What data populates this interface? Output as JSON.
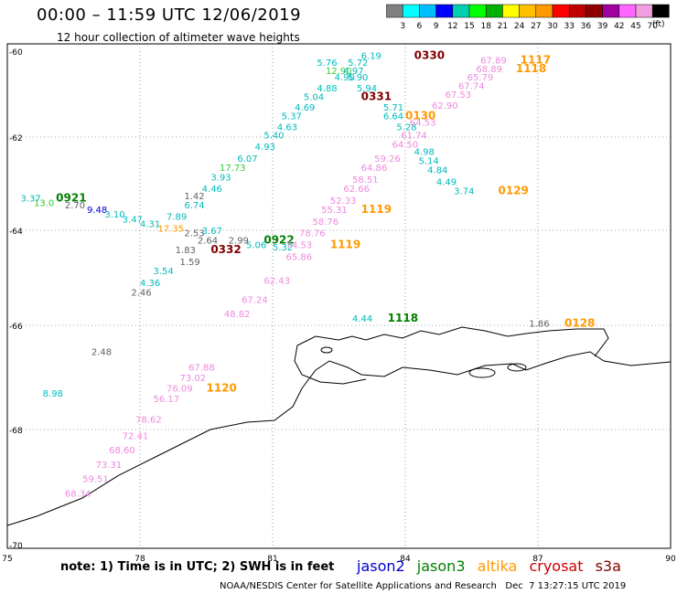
{
  "title": "00:00 – 11:59 UTC 12/06/2019",
  "subtitle": "12 hour collection of altimeter wave heights",
  "colorbar": {
    "unit": "(ft)",
    "ticks": [
      "3",
      "6",
      "9",
      "12",
      "15",
      "18",
      "21",
      "24",
      "27",
      "30",
      "33",
      "36",
      "39",
      "42",
      "45",
      "70"
    ],
    "colors": [
      "#808080",
      "#00ffff",
      "#00bfff",
      "#0000ff",
      "#00d0b0",
      "#00ff00",
      "#00b000",
      "#ffff00",
      "#ffc000",
      "#ff9900",
      "#ff0000",
      "#c00000",
      "#900000",
      "#a000a0",
      "#ff66ff",
      "#f0a0e0",
      "#000000"
    ]
  },
  "axes": {
    "x_labels": [
      "75",
      "78",
      "81",
      "84",
      "87",
      "90"
    ],
    "y_labels": [
      "-60",
      "-62",
      "-64",
      "-66",
      "-68",
      "-70"
    ]
  },
  "satellites": {
    "jason2": "#0000cc",
    "jason3": "#008000",
    "altika": "#ff9900",
    "cryosat": "#cc0000",
    "s3a": "#800000"
  },
  "map_data": {
    "labels": [
      {
        "text": "6.19",
        "color": "#00bbbb",
        "x": 83.0,
        "y": -60.1
      },
      {
        "text": "0330",
        "color": "#800000",
        "x": 84.2,
        "y": -60.1,
        "big": true
      },
      {
        "text": "5.76",
        "color": "#00bbbb",
        "x": 82.0,
        "y": -60.25
      },
      {
        "text": "5.72",
        "color": "#00bbbb",
        "x": 82.7,
        "y": -60.25
      },
      {
        "text": "12.90",
        "color": "#33cc33",
        "x": 82.2,
        "y": -60.45
      },
      {
        "text": "4.97",
        "color": "#00bbbb",
        "x": 82.6,
        "y": -60.45
      },
      {
        "text": "4.90",
        "color": "#00bbbb",
        "x": 82.4,
        "y": -60.6
      },
      {
        "text": "5.90",
        "color": "#00bbbb",
        "x": 82.7,
        "y": -60.6
      },
      {
        "text": "4.88",
        "color": "#00bbbb",
        "x": 82.0,
        "y": -60.85
      },
      {
        "text": "5.94",
        "color": "#00bbbb",
        "x": 82.9,
        "y": -60.85
      },
      {
        "text": "5.04",
        "color": "#00bbbb",
        "x": 81.7,
        "y": -61.05
      },
      {
        "text": "0331",
        "color": "#800000",
        "x": 83.0,
        "y": -61.05,
        "big": true
      },
      {
        "text": "4.69",
        "color": "#00bbbb",
        "x": 81.5,
        "y": -61.3
      },
      {
        "text": "5.71",
        "color": "#00bbbb",
        "x": 83.5,
        "y": -61.3
      },
      {
        "text": "5.37",
        "color": "#00bbbb",
        "x": 81.2,
        "y": -61.5
      },
      {
        "text": "6.64",
        "color": "#00bbbb",
        "x": 83.5,
        "y": -61.5
      },
      {
        "text": "4.63",
        "color": "#00bbbb",
        "x": 81.1,
        "y": -61.75
      },
      {
        "text": "5.28",
        "color": "#00bbbb",
        "x": 83.8,
        "y": -61.75
      },
      {
        "text": "5.40",
        "color": "#00bbbb",
        "x": 80.8,
        "y": -61.95
      },
      {
        "text": "4.93",
        "color": "#00bbbb",
        "x": 80.6,
        "y": -62.2
      },
      {
        "text": "4.98",
        "color": "#00bbbb",
        "x": 84.2,
        "y": -62.3
      },
      {
        "text": "6.07",
        "color": "#00bbbb",
        "x": 80.2,
        "y": -62.45
      },
      {
        "text": "5.14",
        "color": "#00bbbb",
        "x": 84.3,
        "y": -62.5
      },
      {
        "text": "17.73",
        "color": "#33cc33",
        "x": 79.8,
        "y": -62.65
      },
      {
        "text": "4.84",
        "color": "#00bbbb",
        "x": 84.5,
        "y": -62.7
      },
      {
        "text": "3.93",
        "color": "#00bbbb",
        "x": 79.6,
        "y": -62.85
      },
      {
        "text": "4.49",
        "color": "#00bbbb",
        "x": 84.7,
        "y": -62.95
      },
      {
        "text": "4.46",
        "color": "#00bbbb",
        "x": 79.4,
        "y": -63.1
      },
      {
        "text": "3.74",
        "color": "#00bbbb",
        "x": 85.1,
        "y": -63.15
      },
      {
        "text": "0129",
        "color": "#ff9900",
        "x": 86.1,
        "y": -63.15,
        "big": true
      },
      {
        "text": "1.42",
        "color": "#606060",
        "x": 79.0,
        "y": -63.25
      },
      {
        "text": "3.37",
        "color": "#00bbbb",
        "x": 75.3,
        "y": -63.3
      },
      {
        "text": "0921",
        "color": "#008000",
        "x": 76.1,
        "y": -63.3,
        "big": true
      },
      {
        "text": "13.0",
        "color": "#33cc33",
        "x": 75.6,
        "y": -63.4
      },
      {
        "text": "2.70",
        "color": "#606060",
        "x": 76.3,
        "y": -63.45
      },
      {
        "text": "6.74",
        "color": "#00bbbb",
        "x": 79.0,
        "y": -63.45
      },
      {
        "text": "9.48",
        "color": "#0000cc",
        "x": 76.8,
        "y": -63.55
      },
      {
        "text": "3.10",
        "color": "#00bbbb",
        "x": 77.2,
        "y": -63.65
      },
      {
        "text": "7.89",
        "color": "#00bbbb",
        "x": 78.6,
        "y": -63.7
      },
      {
        "text": "3.47",
        "color": "#00bbbb",
        "x": 77.6,
        "y": -63.75
      },
      {
        "text": "4.31",
        "color": "#00bbbb",
        "x": 78.0,
        "y": -63.85
      },
      {
        "text": "17.35",
        "color": "#ff9900",
        "x": 78.4,
        "y": -63.95
      },
      {
        "text": "2.53",
        "color": "#606060",
        "x": 79.0,
        "y": -64.05
      },
      {
        "text": "3.67",
        "color": "#00bbbb",
        "x": 79.4,
        "y": -64.0
      },
      {
        "text": "2.64",
        "color": "#606060",
        "x": 79.3,
        "y": -64.2
      },
      {
        "text": "2.99",
        "color": "#606060",
        "x": 80.0,
        "y": -64.2
      },
      {
        "text": "0922",
        "color": "#008000",
        "x": 80.8,
        "y": -64.2,
        "big": true
      },
      {
        "text": "5.06",
        "color": "#00bbbb",
        "x": 80.4,
        "y": -64.3
      },
      {
        "text": "5.32",
        "color": "#00bbbb",
        "x": 81.0,
        "y": -64.35
      },
      {
        "text": "1.83",
        "color": "#606060",
        "x": 78.8,
        "y": -64.4
      },
      {
        "text": "0332",
        "color": "#800000",
        "x": 79.6,
        "y": -64.4,
        "big": true
      },
      {
        "text": "1.59",
        "color": "#606060",
        "x": 78.9,
        "y": -64.65
      },
      {
        "text": "3.54",
        "color": "#00bbbb",
        "x": 78.3,
        "y": -64.85
      },
      {
        "text": "4.36",
        "color": "#00bbbb",
        "x": 78.0,
        "y": -65.1
      },
      {
        "text": "2.46",
        "color": "#606060",
        "x": 77.8,
        "y": -65.3
      },
      {
        "text": "4.44",
        "color": "#00bbbb",
        "x": 82.8,
        "y": -65.85
      },
      {
        "text": "1118",
        "color": "#008000",
        "x": 83.6,
        "y": -65.85,
        "big": true
      },
      {
        "text": "1.86",
        "color": "#606060",
        "x": 86.8,
        "y": -65.95
      },
      {
        "text": "0128",
        "color": "#ff9900",
        "x": 87.6,
        "y": -65.95,
        "big": true
      },
      {
        "text": "2.48",
        "color": "#606060",
        "x": 76.9,
        "y": -66.5
      },
      {
        "text": "8.98",
        "color": "#00bbbb",
        "x": 75.8,
        "y": -67.3
      },
      {
        "text": "67.89",
        "color": "#ee88dd",
        "x": 85.7,
        "y": -60.2
      },
      {
        "text": "1117",
        "color": "#ff9900",
        "x": 86.6,
        "y": -60.2,
        "big": true
      },
      {
        "text": "68.89",
        "color": "#ee88dd",
        "x": 85.6,
        "y": -60.4
      },
      {
        "text": "1118",
        "color": "#ff9900",
        "x": 86.5,
        "y": -60.4,
        "big": true
      },
      {
        "text": "65.79",
        "color": "#ee88dd",
        "x": 85.4,
        "y": -60.6
      },
      {
        "text": "67.74",
        "color": "#ee88dd",
        "x": 85.2,
        "y": -60.8
      },
      {
        "text": "67.53",
        "color": "#ee88dd",
        "x": 84.9,
        "y": -61.0
      },
      {
        "text": "62.90",
        "color": "#ee88dd",
        "x": 84.6,
        "y": -61.25
      },
      {
        "text": "0130",
        "color": "#ff9900",
        "x": 84.0,
        "y": -61.5,
        "big": true
      },
      {
        "text": "64.53",
        "color": "#ee88dd",
        "x": 84.1,
        "y": -61.65
      },
      {
        "text": "61.74",
        "color": "#ee88dd",
        "x": 83.9,
        "y": -61.95
      },
      {
        "text": "64.50",
        "color": "#ee88dd",
        "x": 83.7,
        "y": -62.15
      },
      {
        "text": "59.26",
        "color": "#ee88dd",
        "x": 83.3,
        "y": -62.45
      },
      {
        "text": "64.86",
        "color": "#ee88dd",
        "x": 83.0,
        "y": -62.65
      },
      {
        "text": "58.51",
        "color": "#ee88dd",
        "x": 82.8,
        "y": -62.9
      },
      {
        "text": "62.66",
        "color": "#ee88dd",
        "x": 82.6,
        "y": -63.1
      },
      {
        "text": "52.33",
        "color": "#ee88dd",
        "x": 82.3,
        "y": -63.35
      },
      {
        "text": "55.31",
        "color": "#ee88dd",
        "x": 82.1,
        "y": -63.55
      },
      {
        "text": "1119",
        "color": "#ff9900",
        "x": 83.0,
        "y": -63.55,
        "big": true
      },
      {
        "text": "58.76",
        "color": "#ee88dd",
        "x": 81.9,
        "y": -63.8
      },
      {
        "text": "78.76",
        "color": "#ee88dd",
        "x": 81.6,
        "y": -64.05
      },
      {
        "text": "74.53",
        "color": "#ee88dd",
        "x": 81.3,
        "y": -64.3
      },
      {
        "text": "1119",
        "color": "#ff9900",
        "x": 82.3,
        "y": -64.3,
        "big": true
      },
      {
        "text": "65.86",
        "color": "#ee88dd",
        "x": 81.3,
        "y": -64.55
      },
      {
        "text": "62.43",
        "color": "#ee88dd",
        "x": 80.8,
        "y": -65.05
      },
      {
        "text": "67.24",
        "color": "#ee88dd",
        "x": 80.3,
        "y": -65.45
      },
      {
        "text": "48.82",
        "color": "#ee88dd",
        "x": 79.9,
        "y": -65.75
      },
      {
        "text": "67.88",
        "color": "#ee88dd",
        "x": 79.1,
        "y": -66.8
      },
      {
        "text": "73.02",
        "color": "#ee88dd",
        "x": 78.9,
        "y": -67.0
      },
      {
        "text": "76.09",
        "color": "#ee88dd",
        "x": 78.6,
        "y": -67.2
      },
      {
        "text": "1120",
        "color": "#ff9900",
        "x": 79.5,
        "y": -67.2,
        "big": true
      },
      {
        "text": "56.17",
        "color": "#ee88dd",
        "x": 78.3,
        "y": -67.4
      },
      {
        "text": "78.62",
        "color": "#ee88dd",
        "x": 77.9,
        "y": -67.8
      },
      {
        "text": "72.41",
        "color": "#ee88dd",
        "x": 77.6,
        "y": -68.1
      },
      {
        "text": "68.60",
        "color": "#ee88dd",
        "x": 77.3,
        "y": -68.35
      },
      {
        "text": "73.31",
        "color": "#ee88dd",
        "x": 77.0,
        "y": -68.6
      },
      {
        "text": "59.51",
        "color": "#ee88dd",
        "x": 76.7,
        "y": -68.85
      },
      {
        "text": "68.34",
        "color": "#ee88dd",
        "x": 76.3,
        "y": -69.1
      }
    ]
  },
  "note": "note: 1) Time is in UTC; 2) SWH is in feet",
  "legend": {
    "jason2": "jason2",
    "jason3": "jason3",
    "altika": "altika",
    "cryosat": "cryosat",
    "s3a": "s3a"
  },
  "footer": "NOAA/NESDIS Center for Satellite Applications and Research   Dec  7 13:27:15 UTC 2019"
}
